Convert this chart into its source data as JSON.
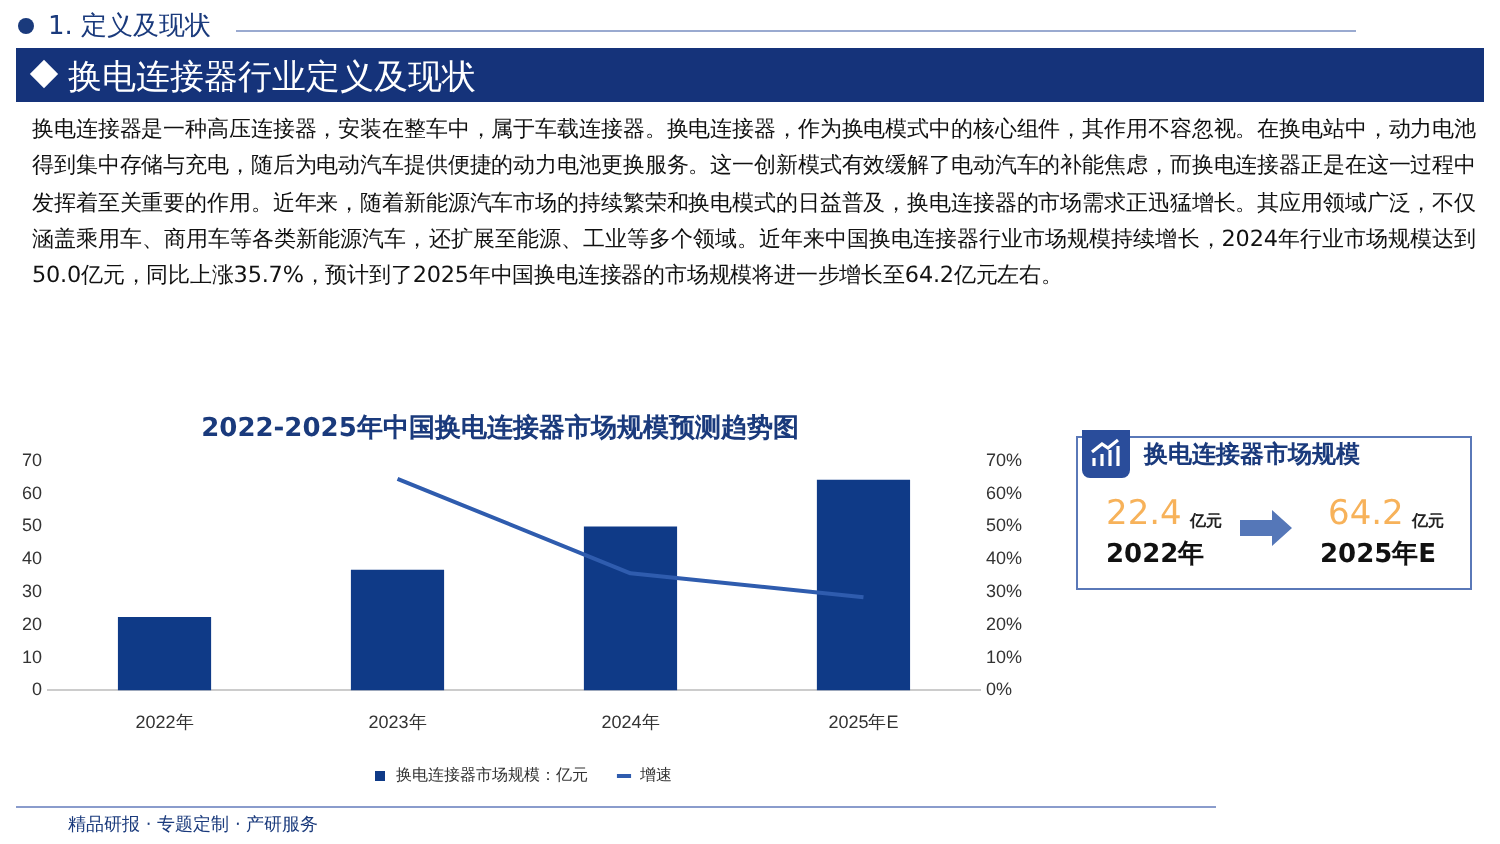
{
  "chart_data": {
    "type": "bar",
    "title": "2022-2025年中国换电连接器市场规模预测趋势图",
    "categories": [
      "2022年",
      "2023年",
      "2024年",
      "2025年E"
    ],
    "series": [
      {
        "name": "换电连接器市场规模：亿元",
        "color": "#0f3a87",
        "values": [
          22.4,
          36.8,
          50.0,
          64.2
        ]
      },
      {
        "name": "增速",
        "type": "line",
        "axis": "y2",
        "color": "#2f5cae",
        "values": [
          null,
          64.5,
          35.7,
          28.4
        ]
      }
    ],
    "ylim": [
      0,
      70
    ],
    "yticks": [
      0,
      10,
      20,
      30,
      40,
      50,
      60,
      70
    ],
    "y2lim": [
      0,
      70
    ],
    "y2ticks": [
      {
        "value": 0,
        "label": "0%"
      },
      {
        "value": 10,
        "label": "10%"
      },
      {
        "value": 20,
        "label": "20%"
      },
      {
        "value": 30,
        "label": "30%"
      },
      {
        "value": 40,
        "label": "40%"
      },
      {
        "value": 50,
        "label": "50%"
      },
      {
        "value": 60,
        "label": "60%"
      },
      {
        "value": 70,
        "label": "70%"
      }
    ],
    "grid": false,
    "legend": "bottom",
    "marker": "none",
    "annotations": [
      "1. 定义及现状",
      "换电连接器行业定义及现状",
      "换电连接器是一种高压连接器，安装在整车中，属于车载连接器。换电连接器，作为换电模式中的核心组件，其作用不容忽视。在换电站中，动力电池得到集中存储与充电，随后为电动汽车提供便捷的动力电池更换服务。这一创新模式有效缓解了电动汽车的补能焦虑，而换电连接器正是在这一过程中发挥着至关重要的作用。近年来，随着新能源汽车市场的持续繁荣和换电模式的日益普及，换电连接器的市场需求正迅猛增长。其应用领域广泛，不仅涵盖乘用车、商用车等各类新能源汽车，还扩展至能源、工业等多个领域。近年来中国换电连接器行业市场规模持续增长，2024年行业市场规模达到50.0亿元，同比上涨35.7%，预计到了2025年中国换电连接器的市场规模将进一步增长至64.2亿元左右。",
      "换电连接器市场规模",
      "22.4",
      "亿元",
      "2022年",
      "64.2",
      "亿元",
      "2025年E",
      "精品研报 · 专题定制 · 产研服务"
    ]
  }
}
